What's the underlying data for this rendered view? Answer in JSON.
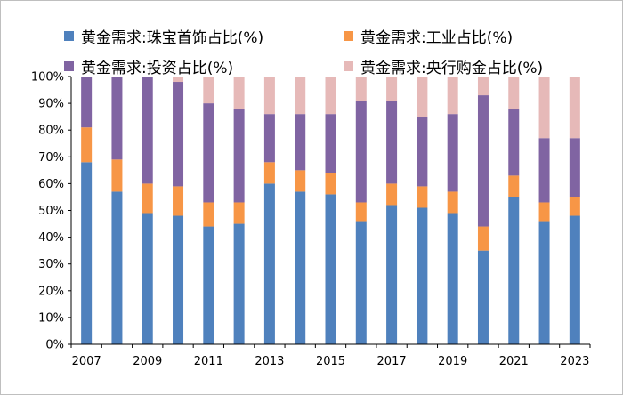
{
  "chart_data": {
    "type": "bar",
    "stacked": true,
    "title": "",
    "xlabel": "",
    "ylabel": "",
    "ylim": [
      0,
      100
    ],
    "yticks": [
      "0%",
      "10%",
      "20%",
      "30%",
      "40%",
      "50%",
      "60%",
      "70%",
      "80%",
      "90%",
      "100%"
    ],
    "categories": [
      "2007",
      "2008",
      "2009",
      "2010",
      "2011",
      "2012",
      "2013",
      "2014",
      "2015",
      "2016",
      "2017",
      "2018",
      "2019",
      "2020",
      "2021",
      "2022",
      "2023"
    ],
    "xtick_labels": [
      "2007",
      "2009",
      "2011",
      "2013",
      "2015",
      "2017",
      "2019",
      "2021",
      "2023"
    ],
    "legend_position": "top",
    "grid": false,
    "series": [
      {
        "name": "黄金需求:珠宝首饰占比(%)",
        "color": "#4f81bd",
        "values": [
          68,
          57,
          49,
          48,
          44,
          45,
          60,
          57,
          56,
          46,
          52,
          51,
          49,
          35,
          55,
          46,
          48
        ]
      },
      {
        "name": "黄金需求:工业占比(%)",
        "color": "#f79646",
        "values": [
          13,
          12,
          11,
          11,
          9,
          8,
          8,
          8,
          8,
          7,
          8,
          8,
          8,
          9,
          8,
          7,
          7
        ]
      },
      {
        "name": "黄金需求:投资占比(%)",
        "color": "#8064a2",
        "values": [
          19,
          31,
          40,
          39,
          37,
          35,
          18,
          21,
          22,
          38,
          31,
          26,
          29,
          49,
          25,
          24,
          22
        ]
      },
      {
        "name": "黄金需求:央行购金占比(%)",
        "color": "#e6b9b8",
        "values": [
          0,
          0,
          0,
          2,
          10,
          12,
          14,
          14,
          14,
          9,
          9,
          15,
          14,
          7,
          12,
          23,
          23
        ]
      }
    ]
  }
}
